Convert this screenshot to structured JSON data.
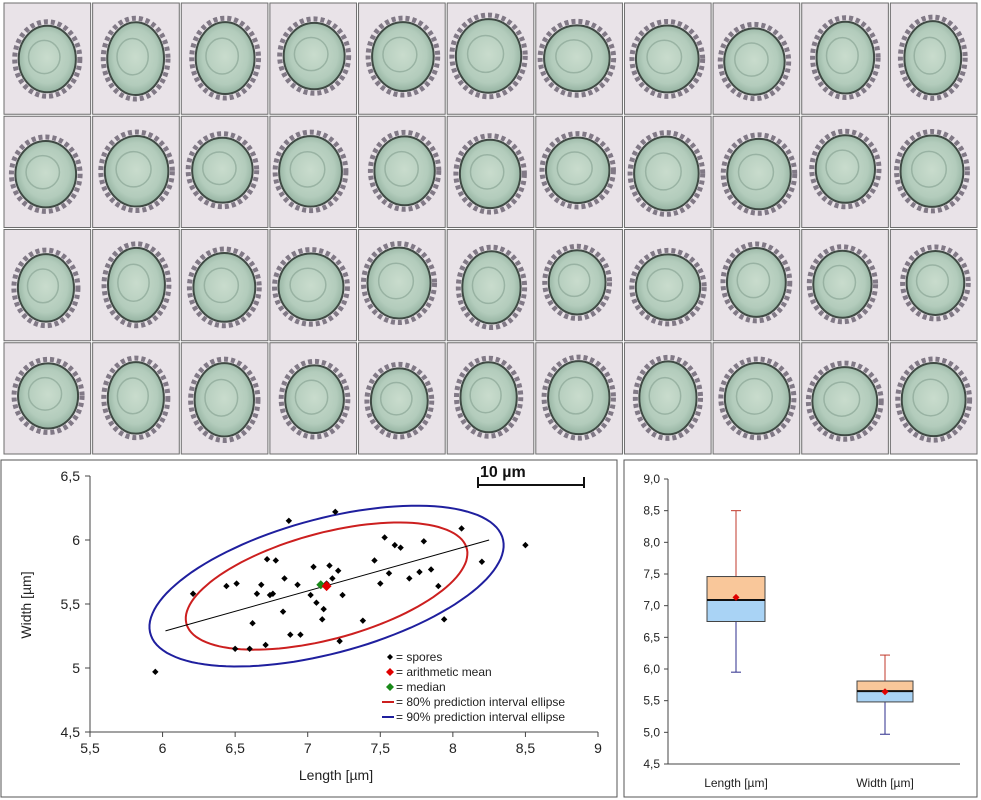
{
  "mosaic": {
    "rows": 4,
    "cols": 11
  },
  "scale_bar": {
    "label": "10 µm"
  },
  "colors": {
    "spore_point": "#000000",
    "mean": "#e00000",
    "median": "#1a8a1a",
    "ellipse_80": "#cc1f1f",
    "ellipse_90": "#1f1f9e",
    "regression": "#000000",
    "box_upper": "#f9c79a",
    "box_lower": "#a9d3f5",
    "whisker_upper": "#c0392b",
    "whisker_lower": "#2c2c8c"
  },
  "chart_data": [
    {
      "type": "scatter",
      "title": "",
      "xlabel": "Length [µm]",
      "ylabel": "Width [µm]",
      "xlim": [
        5.5,
        9
      ],
      "ylim": [
        4.5,
        6.5
      ],
      "x_ticks": [
        "5,5",
        "6",
        "6,5",
        "7",
        "7,5",
        "8",
        "8,5",
        "9"
      ],
      "y_ticks": [
        "4,5",
        "5",
        "5,5",
        "6",
        "6,5"
      ],
      "grid": false,
      "legend_position": "bottom-right",
      "legend": [
        {
          "symbol": "dot",
          "label": "= spores"
        },
        {
          "symbol": "diamond-red",
          "label": "= arithmetic mean"
        },
        {
          "symbol": "diamond-green",
          "label": "= median"
        },
        {
          "symbol": "line-red",
          "label": "= 80% prediction interval ellipse"
        },
        {
          "symbol": "line-blue",
          "label": "= 90% prediction interval ellipse"
        }
      ],
      "points": [
        [
          5.95,
          4.97
        ],
        [
          6.21,
          5.58
        ],
        [
          6.44,
          5.64
        ],
        [
          6.51,
          5.66
        ],
        [
          6.5,
          5.15
        ],
        [
          6.6,
          5.15
        ],
        [
          6.62,
          5.35
        ],
        [
          6.65,
          5.58
        ],
        [
          6.68,
          5.65
        ],
        [
          6.71,
          5.18
        ],
        [
          6.72,
          5.85
        ],
        [
          6.74,
          5.57
        ],
        [
          6.76,
          5.58
        ],
        [
          6.78,
          5.84
        ],
        [
          6.83,
          5.44
        ],
        [
          6.84,
          5.7
        ],
        [
          6.87,
          6.15
        ],
        [
          6.88,
          5.26
        ],
        [
          6.93,
          5.65
        ],
        [
          6.95,
          5.26
        ],
        [
          7.02,
          5.57
        ],
        [
          7.04,
          5.79
        ],
        [
          7.06,
          5.51
        ],
        [
          7.1,
          5.38
        ],
        [
          7.11,
          5.46
        ],
        [
          7.13,
          5.66
        ],
        [
          7.15,
          5.8
        ],
        [
          7.17,
          5.7
        ],
        [
          7.19,
          6.22
        ],
        [
          7.21,
          5.76
        ],
        [
          7.22,
          5.21
        ],
        [
          7.24,
          5.57
        ],
        [
          7.38,
          5.37
        ],
        [
          7.46,
          5.84
        ],
        [
          7.5,
          5.66
        ],
        [
          7.53,
          6.02
        ],
        [
          7.56,
          5.74
        ],
        [
          7.6,
          5.96
        ],
        [
          7.64,
          5.94
        ],
        [
          7.7,
          5.7
        ],
        [
          7.77,
          5.75
        ],
        [
          7.8,
          5.99
        ],
        [
          7.85,
          5.77
        ],
        [
          7.9,
          5.64
        ],
        [
          7.94,
          5.38
        ],
        [
          8.06,
          6.09
        ],
        [
          8.2,
          5.83
        ],
        [
          8.5,
          5.96
        ]
      ],
      "mean": [
        7.13,
        5.64
      ],
      "median": [
        7.09,
        5.65
      ],
      "regression_line": [
        [
          6.02,
          5.29
        ],
        [
          8.25,
          6.0
        ]
      ],
      "ellipse_80": {
        "center": [
          7.13,
          5.64
        ],
        "semi_major": 1.01,
        "semi_minor": 0.41,
        "angle_deg": 17.7
      },
      "ellipse_90": {
        "center": [
          7.13,
          5.64
        ],
        "semi_major": 1.27,
        "semi_minor": 0.52,
        "angle_deg": 17.7
      }
    },
    {
      "type": "box",
      "title": "",
      "categories": [
        "Length [µm]",
        "Width [µm]"
      ],
      "ylim": [
        4.5,
        9.0
      ],
      "y_ticks": [
        "4,5",
        "5,0",
        "5,5",
        "6,0",
        "6,5",
        "7,0",
        "7,5",
        "8,0",
        "8,5",
        "9,0"
      ],
      "grid": false,
      "boxes": [
        {
          "min": 5.95,
          "q1": 6.75,
          "median": 7.09,
          "q3": 7.46,
          "max": 8.5,
          "mean": 7.13
        },
        {
          "min": 4.97,
          "q1": 5.48,
          "median": 5.65,
          "q3": 5.81,
          "max": 6.22,
          "mean": 5.64
        }
      ]
    }
  ]
}
